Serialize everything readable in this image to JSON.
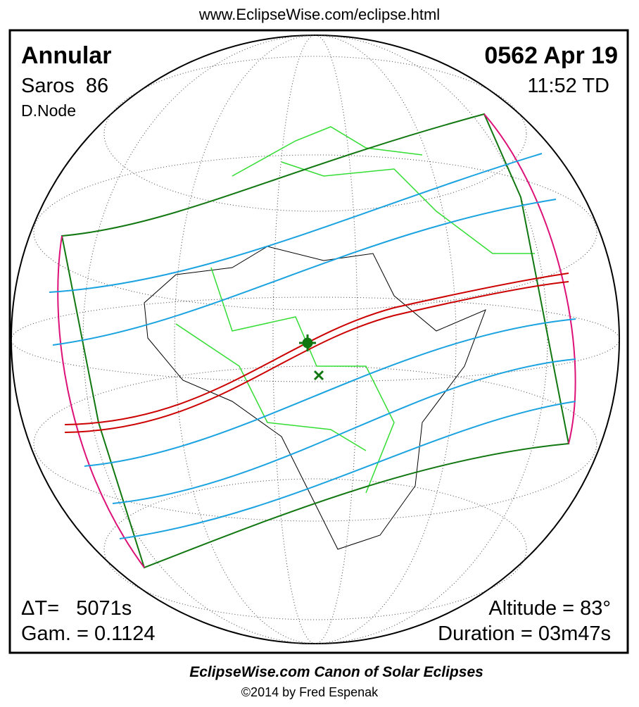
{
  "header": {
    "url": "www.EclipseWise.com/eclipse.html"
  },
  "info": {
    "type": "Annular",
    "saros": "Saros  86",
    "node": "D.Node",
    "date": "0562 Apr 19",
    "time": "11:52 TD",
    "delta_t": "ΔT=   5071s",
    "gamma": "Gam. = 0.1124",
    "altitude": "Altitude = 83°",
    "duration": "Duration = 03m47s"
  },
  "footer": {
    "title": "EclipseWise.com Canon of Solar Eclipses",
    "copyright": "©2014 by Fred Espenak"
  }
}
